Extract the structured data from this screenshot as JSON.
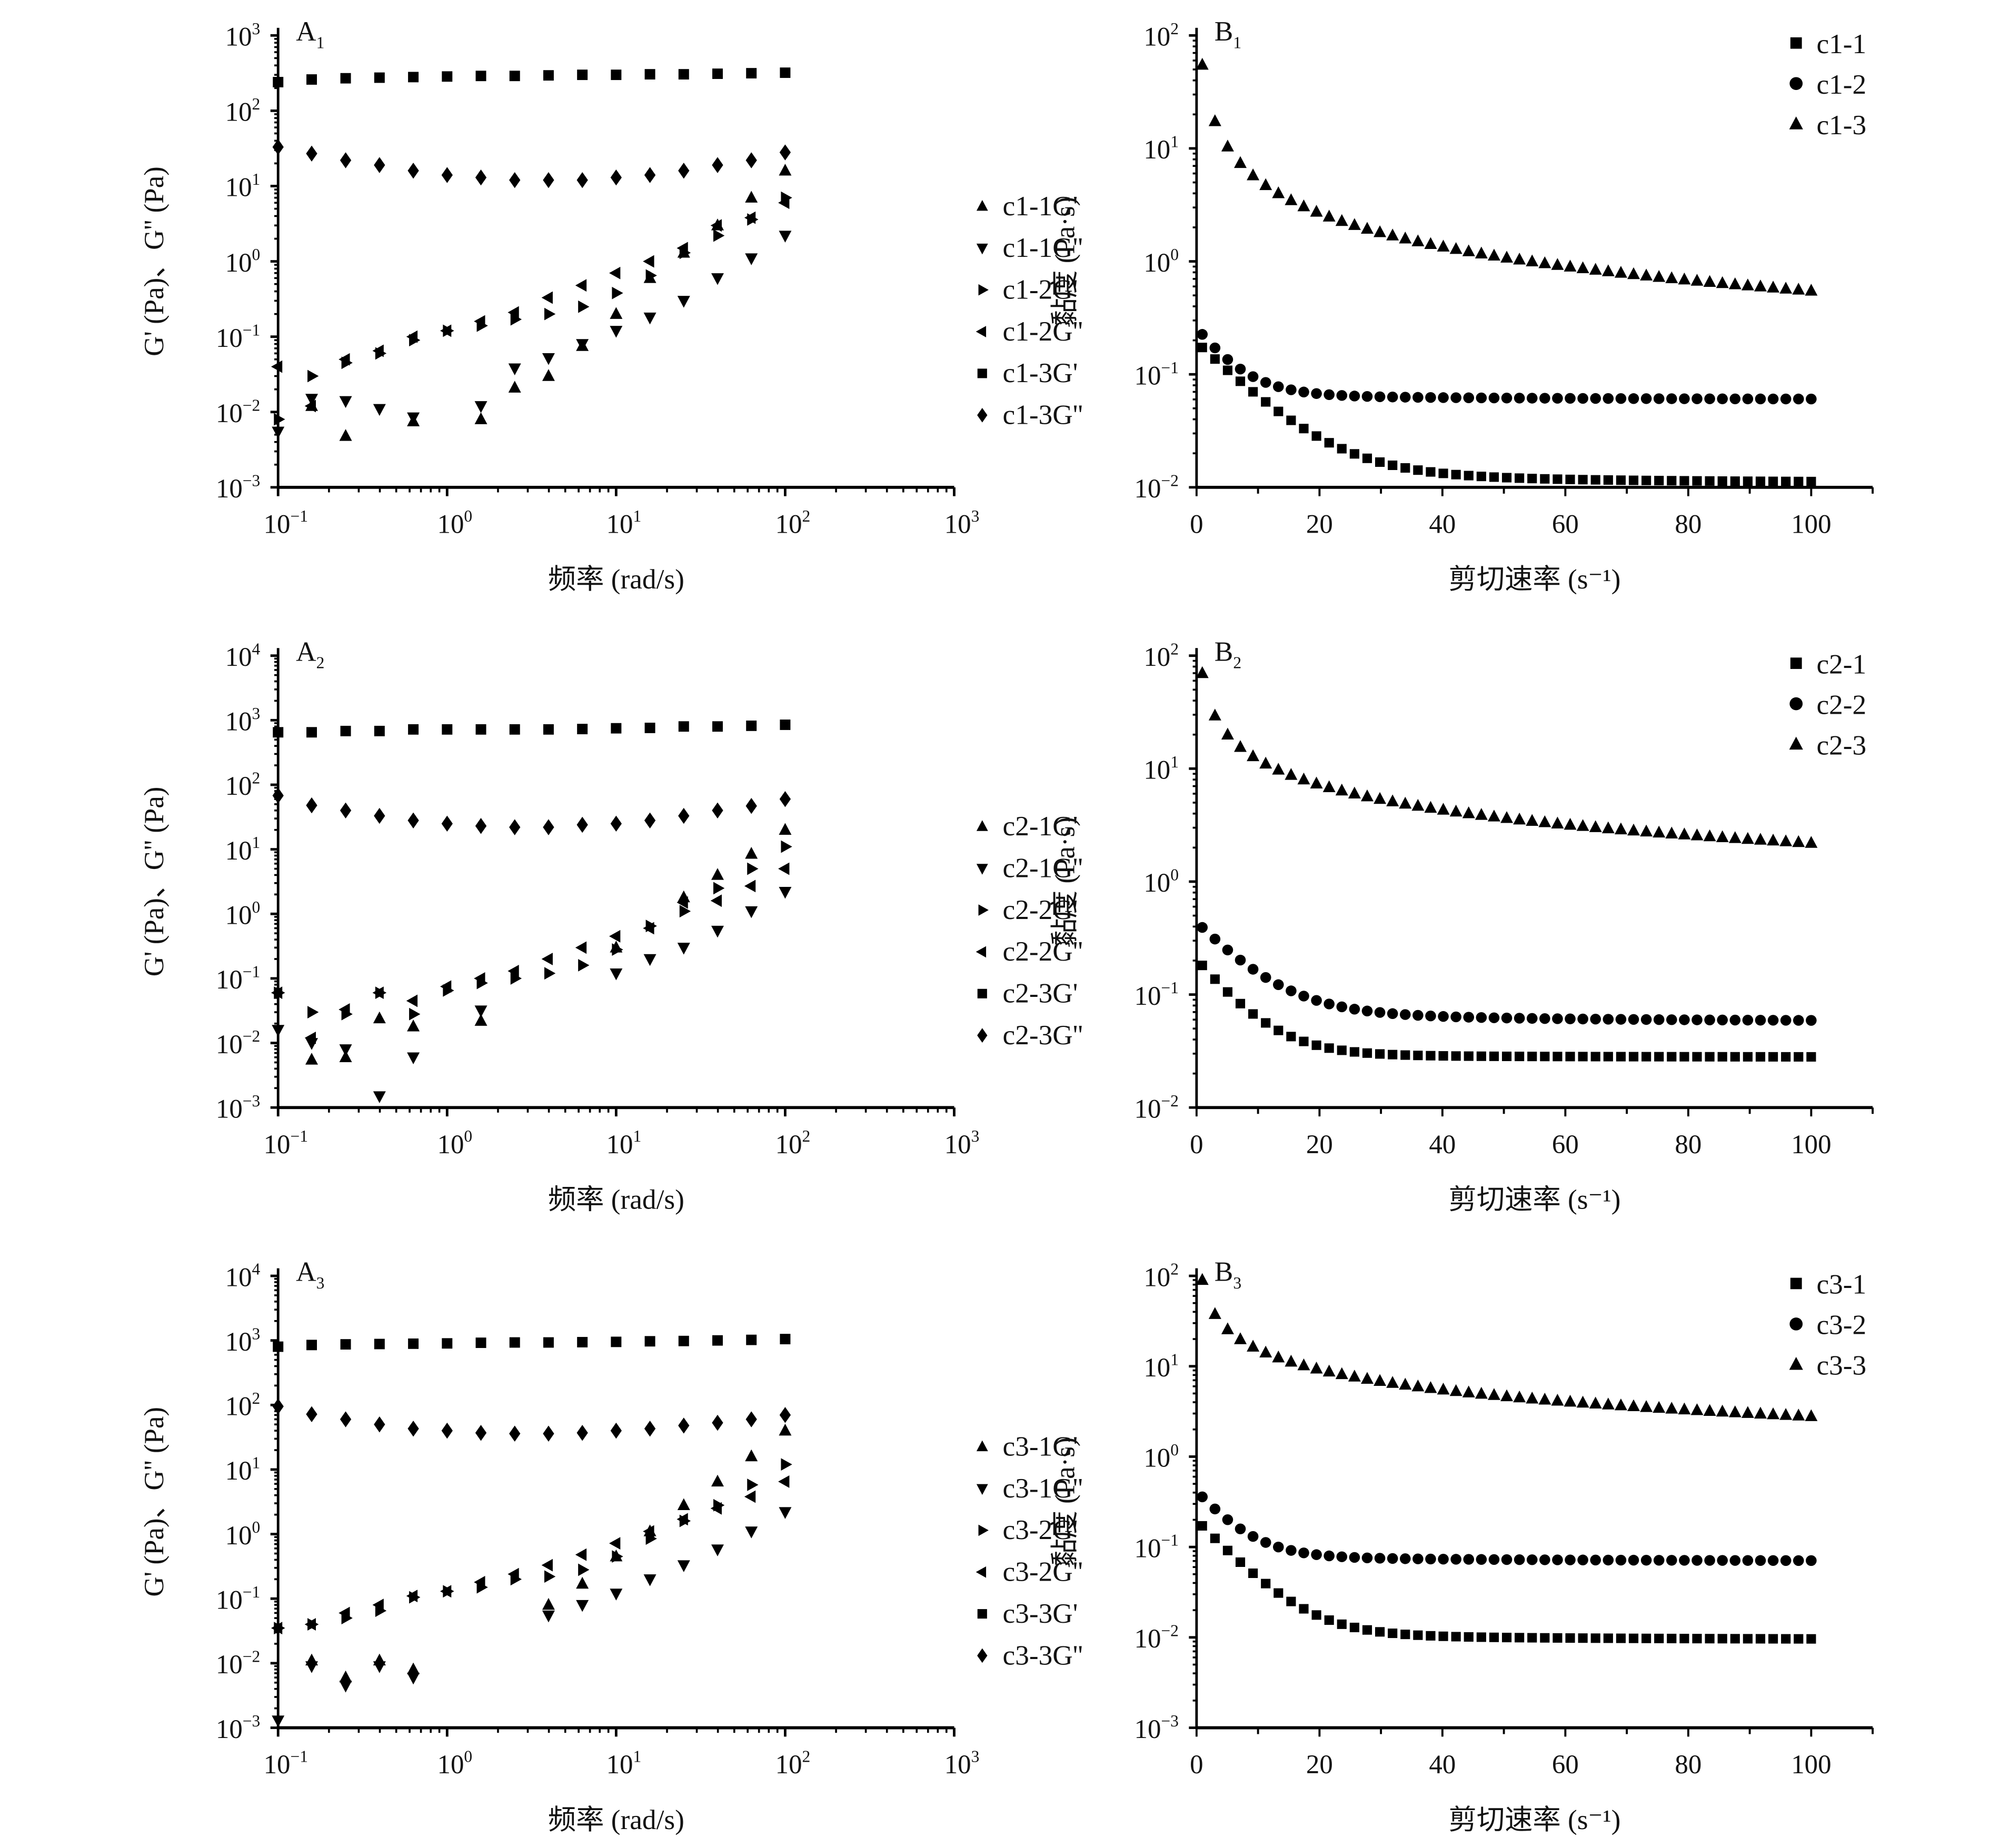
{
  "chart_data": [
    {
      "id": "A1",
      "type": "scatter",
      "panel_label": "A",
      "panel_sub": "1",
      "xscale": "log",
      "yscale": "log",
      "xlabel": "频率 (rad/s)",
      "ylabel": "G' (Pa)、G'' (Pa)",
      "xlim": [
        0.1,
        1000
      ],
      "ylim": [
        0.001,
        1000
      ],
      "xticks": [
        {
          "b": "10",
          "e": "−1"
        },
        {
          "b": "10",
          "e": "0"
        },
        {
          "b": "10",
          "e": "1"
        },
        {
          "b": "10",
          "e": "2"
        },
        {
          "b": "10",
          "e": "3"
        }
      ],
      "yticks": [
        {
          "b": "10",
          "e": "−3"
        },
        {
          "b": "10",
          "e": "−2"
        },
        {
          "b": "10",
          "e": "−1"
        },
        {
          "b": "10",
          "e": "0"
        },
        {
          "b": "10",
          "e": "1"
        },
        {
          "b": "10",
          "e": "2"
        },
        {
          "b": "10",
          "e": "3"
        }
      ],
      "legend_position": "right",
      "x": [
        0.1,
        0.158,
        0.251,
        0.398,
        0.631,
        1,
        1.585,
        2.512,
        3.981,
        6.31,
        10,
        15.85,
        25.12,
        39.81,
        63.1,
        100
      ],
      "series": [
        {
          "name": "c1-1G'",
          "marker": "triangle-up",
          "values": [
            null,
            0.012,
            0.0048,
            null,
            0.0075,
            null,
            0.008,
            0.021,
            0.03,
            0.075,
            0.2,
            0.6,
            1.3,
            3.0,
            7.0,
            16
          ]
        },
        {
          "name": "c1-1G''",
          "marker": "triangle-down",
          "values": [
            0.0055,
            0.015,
            0.014,
            0.011,
            0.0085,
            null,
            0.012,
            0.038,
            0.052,
            0.08,
            0.12,
            0.18,
            0.3,
            0.6,
            1.1,
            2.2
          ]
        },
        {
          "name": "c1-2G'",
          "marker": "triangle-right",
          "values": [
            0.008,
            0.03,
            0.045,
            0.06,
            0.09,
            0.12,
            0.14,
            0.17,
            0.2,
            0.25,
            0.38,
            0.65,
            1.3,
            2.2,
            3.6,
            7.0
          ]
        },
        {
          "name": "c1-2G''",
          "marker": "triangle-left",
          "values": [
            0.04,
            0.012,
            0.05,
            0.065,
            0.1,
            0.12,
            0.16,
            0.21,
            0.33,
            0.48,
            0.7,
            1.0,
            1.5,
            3.0,
            3.8,
            6.0
          ]
        },
        {
          "name": "c1-3G'",
          "marker": "square",
          "values": [
            240,
            260,
            270,
            275,
            280,
            285,
            290,
            290,
            295,
            300,
            300,
            305,
            305,
            310,
            315,
            320
          ]
        },
        {
          "name": "c1-3G''",
          "marker": "diamond",
          "values": [
            33,
            27,
            22,
            19,
            16,
            14,
            13,
            12,
            12,
            12,
            13,
            14,
            16,
            19,
            22,
            28
          ]
        }
      ]
    },
    {
      "id": "B1",
      "type": "scatter",
      "panel_label": "B",
      "panel_sub": "1",
      "xscale": "linear",
      "yscale": "log",
      "xlabel": "剪切速率 (s⁻¹)",
      "ylabel": "黏度 (Pa·s)",
      "xlim": [
        0,
        110
      ],
      "ylim": [
        0.01,
        100
      ],
      "xticks": [
        "0",
        "20",
        "40",
        "60",
        "80",
        "100"
      ],
      "yticks": [
        {
          "b": "10",
          "e": "−2"
        },
        {
          "b": "10",
          "e": "−1"
        },
        {
          "b": "10",
          "e": "0"
        },
        {
          "b": "10",
          "e": "1"
        },
        {
          "b": "10",
          "e": "2"
        }
      ],
      "legend_position": "top-right",
      "x_range": [
        0.93,
        100
      ],
      "n_points": 49,
      "series": [
        {
          "name": "c1-1",
          "marker": "square",
          "start": 0.17,
          "mid": 0.016,
          "end": 0.011,
          "decay": 8
        },
        {
          "name": "c1-2",
          "marker": "circle",
          "start": 0.22,
          "mid": 0.07,
          "end": 0.06,
          "decay": 5
        },
        {
          "name": "c1-3",
          "marker": "triangle-up",
          "start": 55,
          "mid": 2.0,
          "end": 0.55,
          "decay": 0
        }
      ]
    },
    {
      "id": "A2",
      "type": "scatter",
      "panel_label": "A",
      "panel_sub": "2",
      "xscale": "log",
      "yscale": "log",
      "xlabel": "频率 (rad/s)",
      "ylabel": "G' (Pa)、G'' (Pa)",
      "xlim": [
        0.1,
        1000
      ],
      "ylim": [
        0.001,
        10000
      ],
      "xticks": [
        {
          "b": "10",
          "e": "−1"
        },
        {
          "b": "10",
          "e": "0"
        },
        {
          "b": "10",
          "e": "1"
        },
        {
          "b": "10",
          "e": "2"
        },
        {
          "b": "10",
          "e": "3"
        }
      ],
      "yticks": [
        {
          "b": "10",
          "e": "−3"
        },
        {
          "b": "10",
          "e": "−2"
        },
        {
          "b": "10",
          "e": "−1"
        },
        {
          "b": "10",
          "e": "0"
        },
        {
          "b": "10",
          "e": "1"
        },
        {
          "b": "10",
          "e": "2"
        },
        {
          "b": "10",
          "e": "3"
        },
        {
          "b": "10",
          "e": "4"
        }
      ],
      "legend_position": "right",
      "x": [
        0.1,
        0.158,
        0.251,
        0.398,
        0.631,
        1,
        1.585,
        2.512,
        3.981,
        6.31,
        10,
        15.85,
        25.12,
        39.81,
        63.1,
        100
      ],
      "series": [
        {
          "name": "c2-1G'",
          "marker": "triangle-up",
          "values": [
            null,
            0.0055,
            0.006,
            0.024,
            0.018,
            null,
            0.022,
            null,
            null,
            null,
            0.3,
            null,
            1.8,
            4.0,
            8.5,
            20
          ]
        },
        {
          "name": "c2-1G''",
          "marker": "triangle-down",
          "values": [
            0.016,
            0.01,
            0.008,
            0.0015,
            0.006,
            null,
            0.032,
            null,
            null,
            null,
            0.12,
            0.2,
            0.3,
            0.55,
            1.1,
            2.2
          ]
        },
        {
          "name": "c2-2G'",
          "marker": "triangle-right",
          "values": [
            0.06,
            0.03,
            0.028,
            0.06,
            0.028,
            0.065,
            0.085,
            0.1,
            0.12,
            0.16,
            0.28,
            0.65,
            1.1,
            2.5,
            5.0,
            11
          ]
        },
        {
          "name": "c2-2G''",
          "marker": "triangle-left",
          "values": [
            0.06,
            0.012,
            0.033,
            0.06,
            0.045,
            0.075,
            0.1,
            0.13,
            0.2,
            0.3,
            0.45,
            0.6,
            1.5,
            1.6,
            2.7,
            5.0
          ]
        },
        {
          "name": "c2-3G'",
          "marker": "square",
          "values": [
            650,
            650,
            680,
            680,
            720,
            720,
            720,
            720,
            720,
            730,
            750,
            760,
            800,
            800,
            820,
            850
          ]
        },
        {
          "name": "c2-3G''",
          "marker": "diamond",
          "values": [
            68,
            48,
            40,
            33,
            28,
            25,
            23,
            22,
            22,
            24,
            25,
            28,
            33,
            40,
            47,
            60
          ]
        }
      ]
    },
    {
      "id": "B2",
      "type": "scatter",
      "panel_label": "B",
      "panel_sub": "2",
      "xscale": "linear",
      "yscale": "log",
      "xlabel": "剪切速率 (s⁻¹)",
      "ylabel": "黏度 (Pa·s)",
      "xlim": [
        0,
        110
      ],
      "ylim": [
        0.01,
        100
      ],
      "xticks": [
        "0",
        "20",
        "40",
        "60",
        "80",
        "100"
      ],
      "yticks": [
        {
          "b": "10",
          "e": "−2"
        },
        {
          "b": "10",
          "e": "−1"
        },
        {
          "b": "10",
          "e": "0"
        },
        {
          "b": "10",
          "e": "1"
        },
        {
          "b": "10",
          "e": "2"
        }
      ],
      "legend_position": "top-right",
      "x_range": [
        0.93,
        100
      ],
      "n_points": 49,
      "series": [
        {
          "name": "c2-1",
          "marker": "square",
          "start": 0.18,
          "mid": 0.03,
          "end": 0.028,
          "decay": 6
        },
        {
          "name": "c2-2",
          "marker": "circle",
          "start": 0.38,
          "mid": 0.08,
          "end": 0.058,
          "decay": 7
        },
        {
          "name": "c2-3",
          "marker": "triangle-up",
          "start": 70,
          "mid": 6.0,
          "end": 2.2,
          "decay": 0
        }
      ]
    },
    {
      "id": "A3",
      "type": "scatter",
      "panel_label": "A",
      "panel_sub": "3",
      "xscale": "log",
      "yscale": "log",
      "xlabel": "频率 (rad/s)",
      "ylabel": "G' (Pa)、G'' (Pa)",
      "xlim": [
        0.1,
        1000
      ],
      "ylim": [
        0.001,
        10000
      ],
      "xticks": [
        {
          "b": "10",
          "e": "−1"
        },
        {
          "b": "10",
          "e": "0"
        },
        {
          "b": "10",
          "e": "1"
        },
        {
          "b": "10",
          "e": "2"
        },
        {
          "b": "10",
          "e": "3"
        }
      ],
      "yticks": [
        {
          "b": "10",
          "e": "−3"
        },
        {
          "b": "10",
          "e": "−2"
        },
        {
          "b": "10",
          "e": "−1"
        },
        {
          "b": "10",
          "e": "0"
        },
        {
          "b": "10",
          "e": "1"
        },
        {
          "b": "10",
          "e": "2"
        },
        {
          "b": "10",
          "e": "3"
        },
        {
          "b": "10",
          "e": "4"
        }
      ],
      "legend_position": "right",
      "x": [
        0.1,
        0.158,
        0.251,
        0.398,
        0.631,
        1,
        1.585,
        2.512,
        3.981,
        6.31,
        10,
        15.85,
        25.12,
        39.81,
        63.1,
        100
      ],
      "series": [
        {
          "name": "c3-1G'",
          "marker": "triangle-up",
          "values": [
            null,
            0.011,
            0.006,
            0.011,
            0.008,
            null,
            null,
            null,
            0.08,
            0.17,
            0.45,
            1.1,
            2.8,
            6.5,
            16,
            40
          ]
        },
        {
          "name": "c3-1G''",
          "marker": "triangle-down",
          "values": [
            0.0013,
            0.009,
            0.0045,
            0.009,
            0.006,
            null,
            null,
            null,
            0.055,
            0.08,
            0.12,
            0.2,
            0.33,
            0.58,
            1.1,
            2.2
          ]
        },
        {
          "name": "c3-2G'",
          "marker": "triangle-right",
          "values": [
            0.035,
            0.04,
            0.05,
            0.065,
            0.105,
            0.13,
            0.15,
            0.2,
            0.22,
            0.28,
            0.45,
            0.85,
            1.6,
            2.8,
            5.8,
            12
          ]
        },
        {
          "name": "c3-2G''",
          "marker": "triangle-left",
          "values": [
            0.035,
            0.04,
            0.06,
            0.08,
            0.11,
            0.13,
            0.18,
            0.24,
            0.33,
            0.48,
            0.72,
            1.1,
            1.7,
            2.5,
            3.8,
            6.5
          ]
        },
        {
          "name": "c3-3G'",
          "marker": "square",
          "values": [
            800,
            850,
            870,
            880,
            890,
            900,
            920,
            930,
            930,
            940,
            950,
            970,
            980,
            1000,
            1020,
            1050
          ]
        },
        {
          "name": "c3-3G''",
          "marker": "diamond",
          "values": [
            95,
            72,
            60,
            50,
            43,
            40,
            37,
            36,
            36,
            37,
            40,
            43,
            48,
            53,
            60,
            70
          ]
        }
      ]
    },
    {
      "id": "B3",
      "type": "scatter",
      "panel_label": "B",
      "panel_sub": "3",
      "xscale": "linear",
      "yscale": "log",
      "xlabel": "剪切速率 (s⁻¹)",
      "ylabel": "黏度 (Pa·s)",
      "xlim": [
        0,
        110
      ],
      "ylim": [
        0.001,
        100
      ],
      "xticks": [
        "0",
        "20",
        "40",
        "60",
        "80",
        "100"
      ],
      "yticks": [
        {
          "b": "10",
          "e": "−3"
        },
        {
          "b": "10",
          "e": "−2"
        },
        {
          "b": "10",
          "e": "−1"
        },
        {
          "b": "10",
          "e": "0"
        },
        {
          "b": "10",
          "e": "1"
        },
        {
          "b": "10",
          "e": "2"
        }
      ],
      "legend_position": "top-right",
      "x_range": [
        0.93,
        100
      ],
      "n_points": 49,
      "series": [
        {
          "name": "c3-1",
          "marker": "square",
          "start": 0.17,
          "mid": 0.012,
          "end": 0.0095,
          "decay": 6
        },
        {
          "name": "c3-2",
          "marker": "circle",
          "start": 0.35,
          "mid": 0.085,
          "end": 0.07,
          "decay": 5
        },
        {
          "name": "c3-3",
          "marker": "triangle-up",
          "start": 90,
          "mid": 7.0,
          "end": 2.8,
          "decay": 0
        }
      ]
    }
  ]
}
